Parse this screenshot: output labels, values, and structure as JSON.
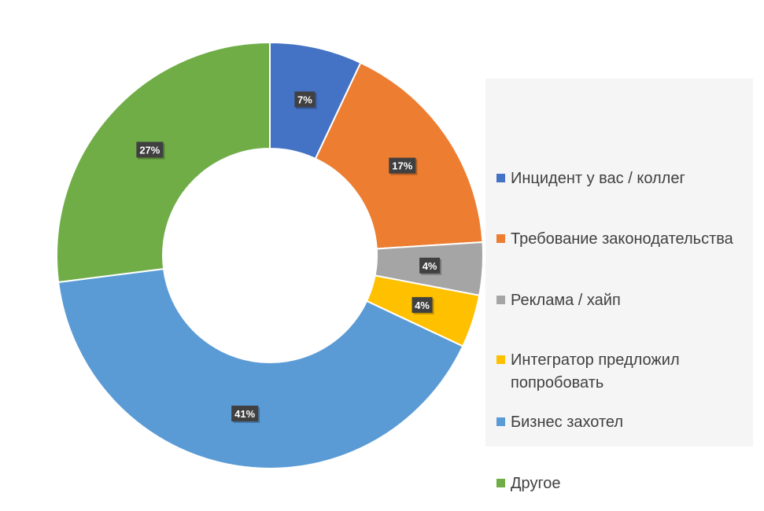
{
  "chart_data": {
    "type": "pie",
    "donut": true,
    "title": "",
    "categories": [
      "Инцидент у вас / коллег",
      "Требование законодательства",
      "Реклама / хайп",
      "Интегратор предложил попробовать",
      "Бизнес захотел",
      "Другое"
    ],
    "values": [
      7,
      17,
      4,
      4,
      41,
      27
    ],
    "data_labels": [
      "7%",
      "17%",
      "4%",
      "4%",
      "41%",
      "27%"
    ],
    "colors": [
      "#4472C4",
      "#ED7D31",
      "#A5A5A5",
      "#FFC000",
      "#5B9BD5",
      "#70AD47"
    ],
    "legend_position": "right",
    "label_style": "dark-box-white-bold"
  }
}
